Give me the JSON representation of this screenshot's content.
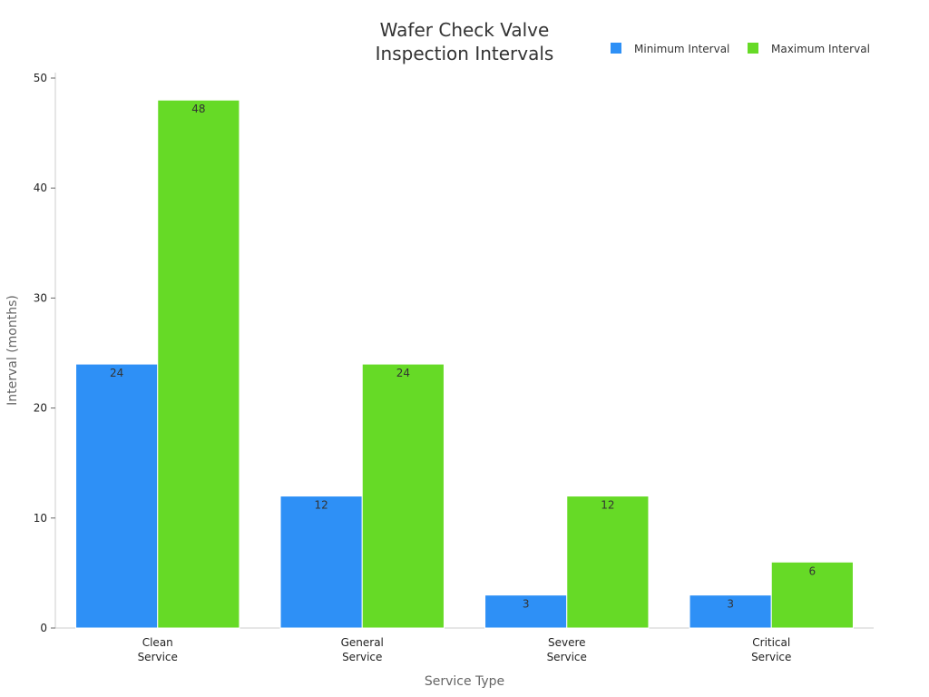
{
  "chart_data": {
    "type": "bar",
    "title_lines": [
      "Wafer Check Valve",
      "Inspection Intervals"
    ],
    "xlabel": "Service Type",
    "ylabel": "Interval (months)",
    "categories": [
      [
        "Clean",
        "Service"
      ],
      [
        "General",
        "Service"
      ],
      [
        "Severe",
        "Service"
      ],
      [
        "Critical",
        "Service"
      ]
    ],
    "series": [
      {
        "name": "Minimum Interval",
        "color": "#2E90F6",
        "values": [
          24,
          12,
          3,
          3
        ]
      },
      {
        "name": "Maximum Interval",
        "color": "#66DA26",
        "values": [
          48,
          24,
          12,
          6
        ]
      }
    ],
    "ylim": [
      0,
      50
    ],
    "yticks": [
      0,
      10,
      20,
      30,
      40,
      50
    ],
    "legend_position": "top-right",
    "grid": false
  }
}
